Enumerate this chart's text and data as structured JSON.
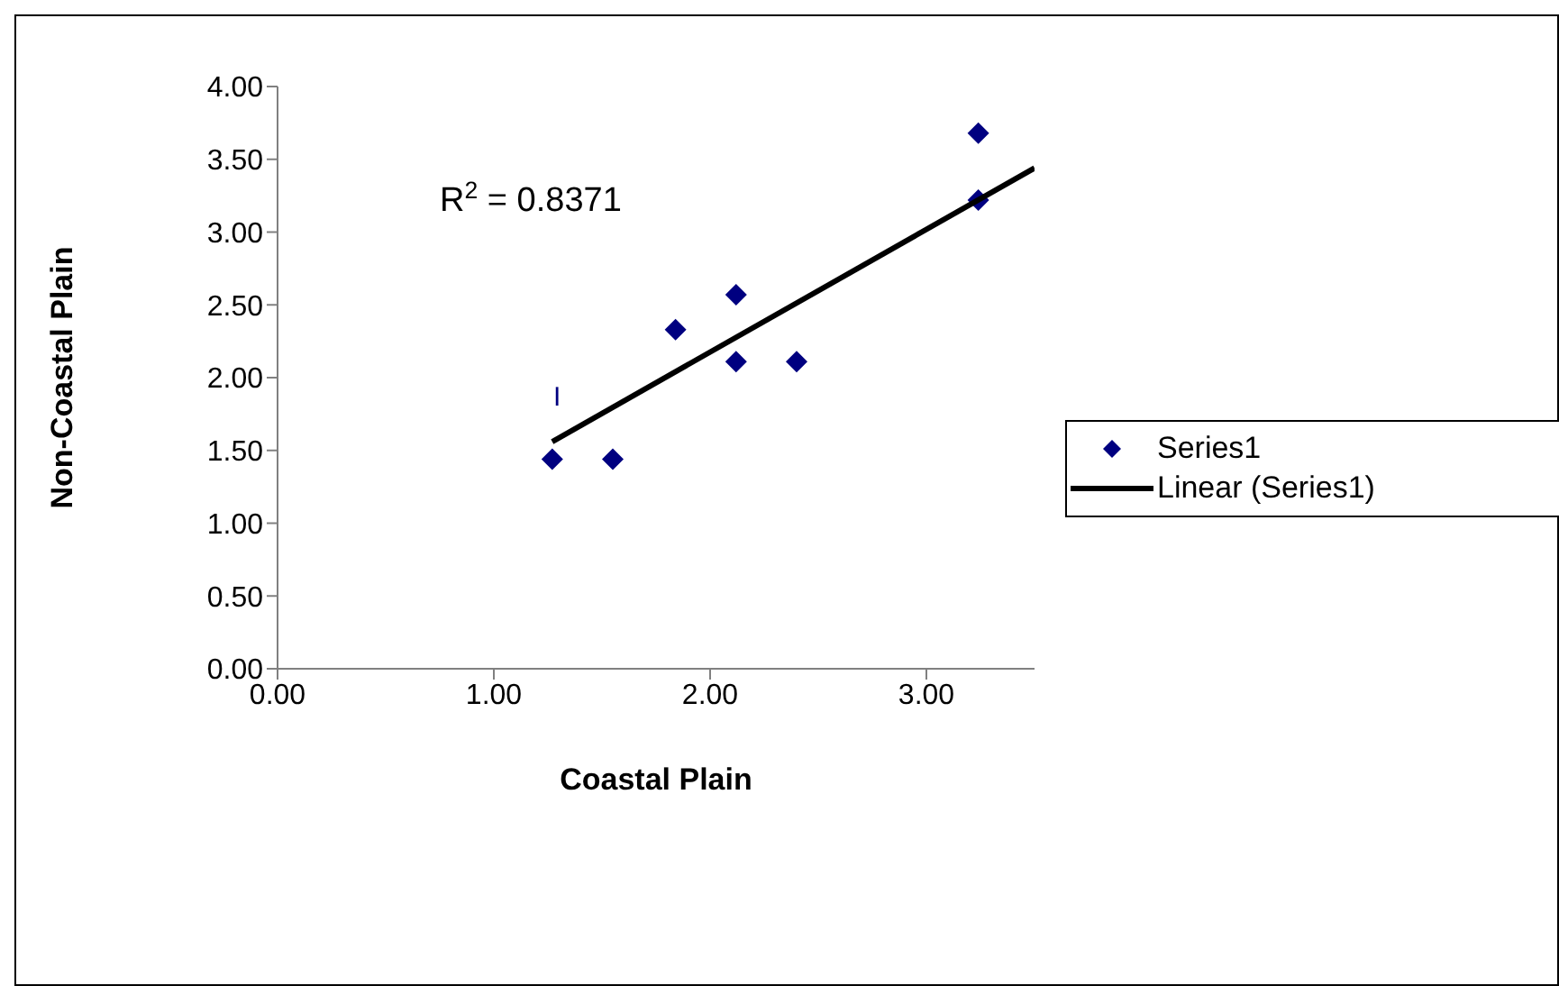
{
  "chart_data": {
    "type": "scatter",
    "xlabel": "Coastal Plain",
    "ylabel": "Non-Coastal Plain",
    "x": [
      1.27,
      1.55,
      1.84,
      2.12,
      2.12,
      2.4,
      3.24,
      3.24
    ],
    "series": [
      {
        "name": "Series1",
        "color": "#000080",
        "marker": "diamond",
        "values": [
          1.44,
          1.44,
          2.33,
          2.57,
          2.11,
          2.11,
          3.68,
          3.22
        ]
      },
      {
        "name": "Linear (Series1)",
        "type": "line",
        "color": "#000000",
        "marker": "none",
        "x": [
          1.27,
          3.5
        ],
        "values": [
          1.56,
          3.44
        ]
      }
    ],
    "xlim": [
      0,
      3.5
    ],
    "xticks": [
      {
        "value": 0,
        "label": "0.00"
      },
      {
        "value": 1,
        "label": "1.00"
      },
      {
        "value": 2,
        "label": "2.00"
      },
      {
        "value": 3,
        "label": "3.00"
      }
    ],
    "ylim": [
      0,
      4
    ],
    "yticks": [
      {
        "value": 0,
        "label": "0.00"
      },
      {
        "value": 0.5,
        "label": "0.50"
      },
      {
        "value": 1,
        "label": "1.00"
      },
      {
        "value": 1.5,
        "label": "1.50"
      },
      {
        "value": 2,
        "label": "2.00"
      },
      {
        "value": 2.5,
        "label": "2.50"
      },
      {
        "value": 3,
        "label": "3.00"
      },
      {
        "value": 3.5,
        "label": "3.50"
      },
      {
        "value": 4,
        "label": "4.00"
      }
    ],
    "annotations": [
      "R$^{2}$ = 0.8371",
      "I"
    ],
    "grid": false,
    "legend": "right"
  }
}
